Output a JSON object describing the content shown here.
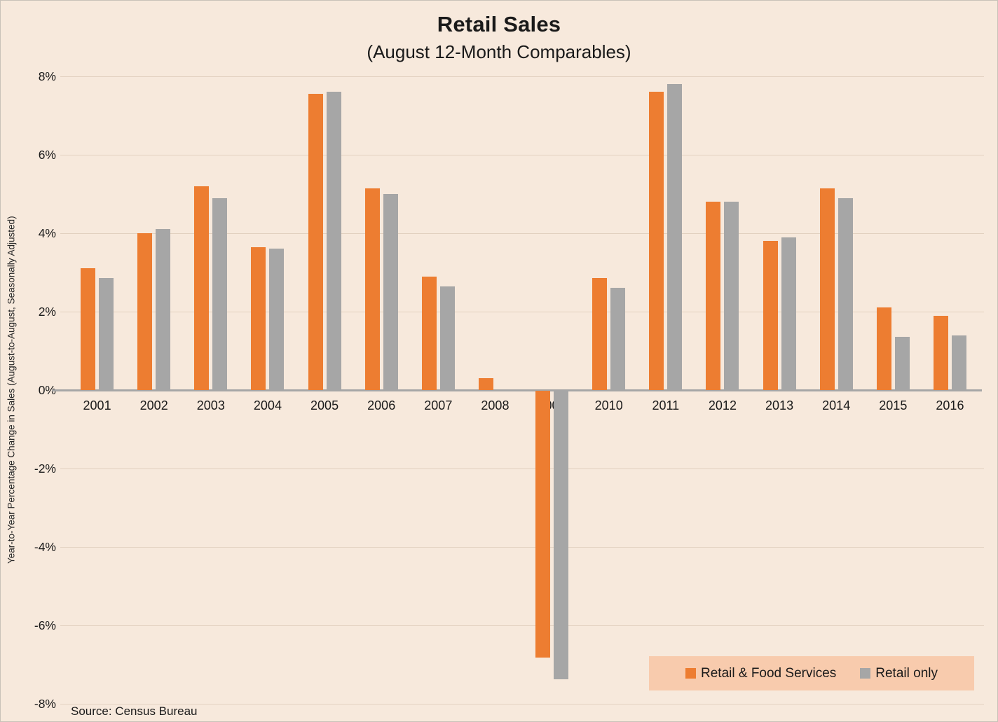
{
  "chart_data": {
    "type": "bar",
    "title": "Retail Sales",
    "subtitle": "(August 12-Month Comparables)",
    "ylabel": "Year-to-Year Percentage Change in Sales (August-to-August, Seasonally Adjusted)",
    "xlabel": "",
    "source": "Source: Census Bureau",
    "categories": [
      "2001",
      "2002",
      "2003",
      "2004",
      "2005",
      "2006",
      "2007",
      "2008",
      "2009",
      "2010",
      "2011",
      "2012",
      "2013",
      "2014",
      "2015",
      "2016"
    ],
    "series": [
      {
        "name": "Retail & Food Services",
        "color": "#ED7D31",
        "values": [
          3.1,
          4.0,
          5.2,
          3.65,
          7.55,
          5.15,
          2.9,
          0.3,
          -6.8,
          2.85,
          7.6,
          4.8,
          3.8,
          5.15,
          2.1,
          1.9
        ]
      },
      {
        "name": "Retail only",
        "color": "#A6A6A6",
        "values": [
          2.85,
          4.1,
          4.9,
          3.6,
          7.6,
          5.0,
          2.65,
          0.0,
          -7.35,
          2.6,
          7.8,
          4.8,
          3.9,
          4.9,
          1.35,
          1.4
        ]
      }
    ],
    "ylim": [
      -8,
      8
    ],
    "ytick_values": [
      8,
      6,
      4,
      2,
      0,
      -2,
      -4,
      -6,
      -8
    ],
    "yticks": [
      "8%",
      "6%",
      "4%",
      "2%",
      "0%",
      "-2%",
      "-4%",
      "-6%",
      "-8%"
    ],
    "grid": true,
    "legend_position": "bottom-right",
    "colors": {
      "background": "#F7E9DC",
      "legend_background": "#F8CBAD",
      "gridline": "#E2D1C0",
      "axis": "#A6A6A6",
      "text": "#1A1A1A"
    }
  }
}
